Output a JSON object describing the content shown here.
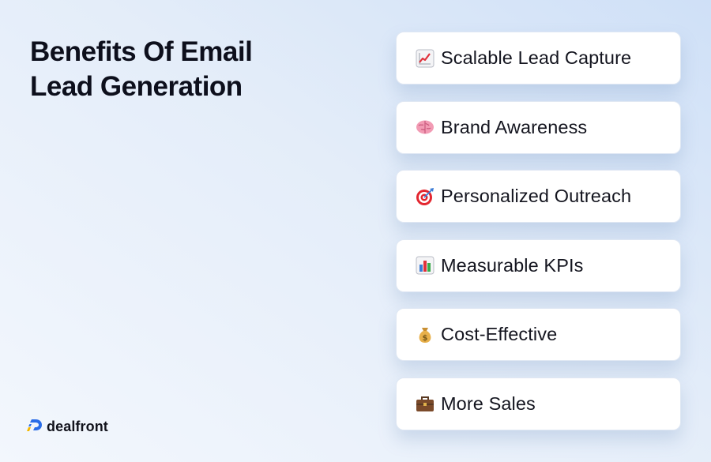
{
  "title": {
    "line1": "Benefits Of Email",
    "line2": "Lead Generation"
  },
  "benefits": [
    {
      "icon": "chart-increasing-icon",
      "label": "Scalable Lead Capture"
    },
    {
      "icon": "brain-icon",
      "label": "Brand Awareness"
    },
    {
      "icon": "target-icon",
      "label": "Personalized Outreach"
    },
    {
      "icon": "bar-chart-icon",
      "label": "Measurable KPIs"
    },
    {
      "icon": "money-bag-icon",
      "label": "Cost-Effective"
    },
    {
      "icon": "briefcase-icon",
      "label": "More Sales"
    }
  ],
  "brand": {
    "logo_text": "dealfront",
    "logo_icon": "dealfront-logo-icon",
    "colors": {
      "blue": "#2a6de8",
      "yellow": "#f5b800"
    }
  }
}
